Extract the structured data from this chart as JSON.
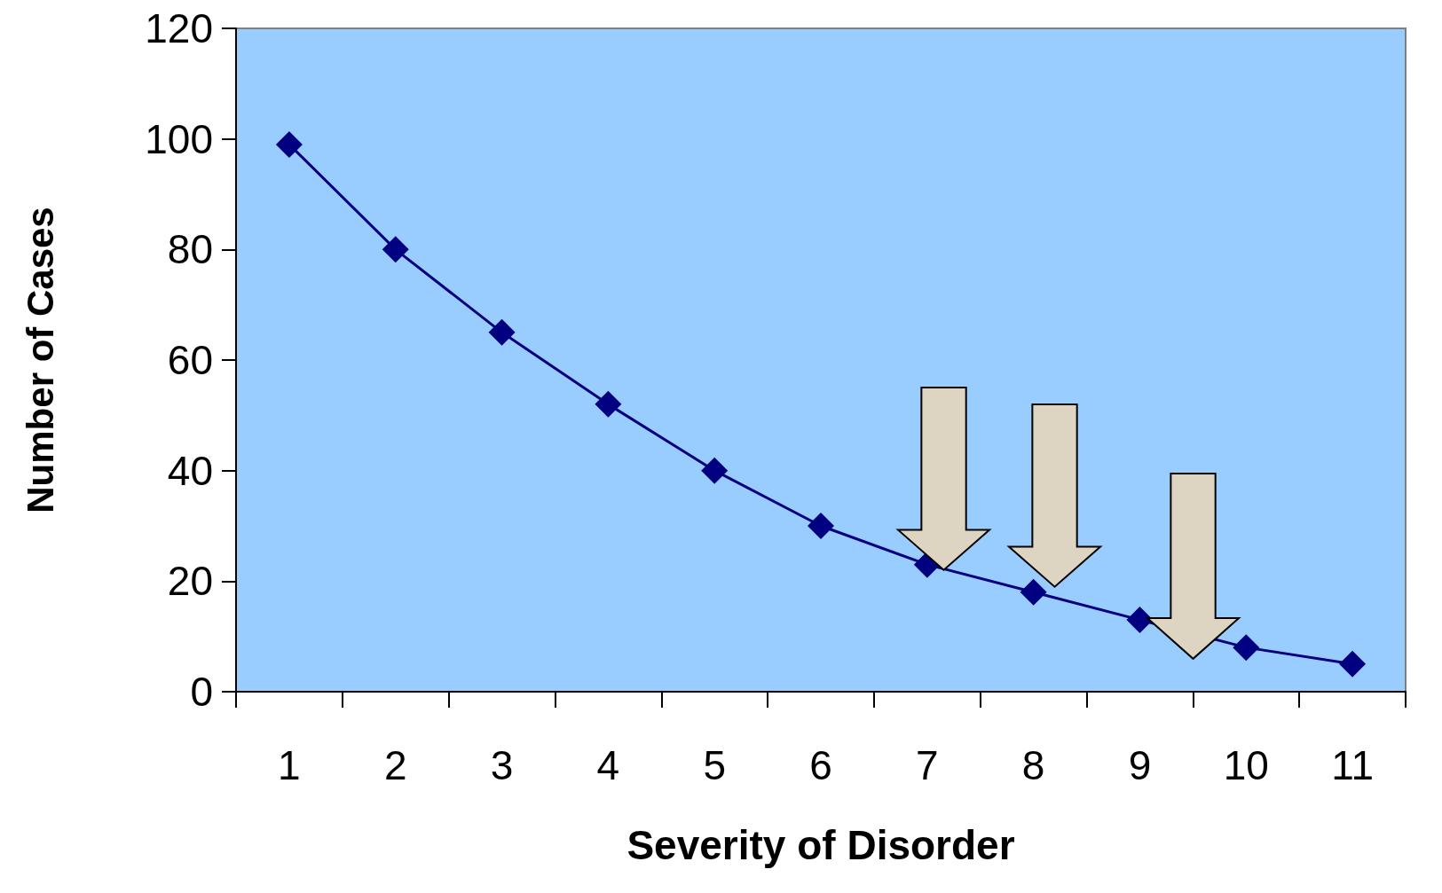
{
  "chart_data": {
    "type": "line",
    "xlabel": "Severity of Disorder",
    "ylabel": "Number of Cases",
    "categories": [
      "1",
      "2",
      "3",
      "4",
      "5",
      "6",
      "7",
      "8",
      "9",
      "10",
      "11"
    ],
    "series": [
      {
        "color": "#000080",
        "values": [
          99,
          80,
          65,
          52,
          40,
          30,
          23,
          18,
          13,
          8,
          5
        ]
      }
    ],
    "ylim": [
      0,
      120
    ],
    "yticks": [
      0,
      20,
      40,
      60,
      80,
      100,
      120
    ],
    "grid": false,
    "marker": "diamond",
    "line_style": "solid"
  }
}
